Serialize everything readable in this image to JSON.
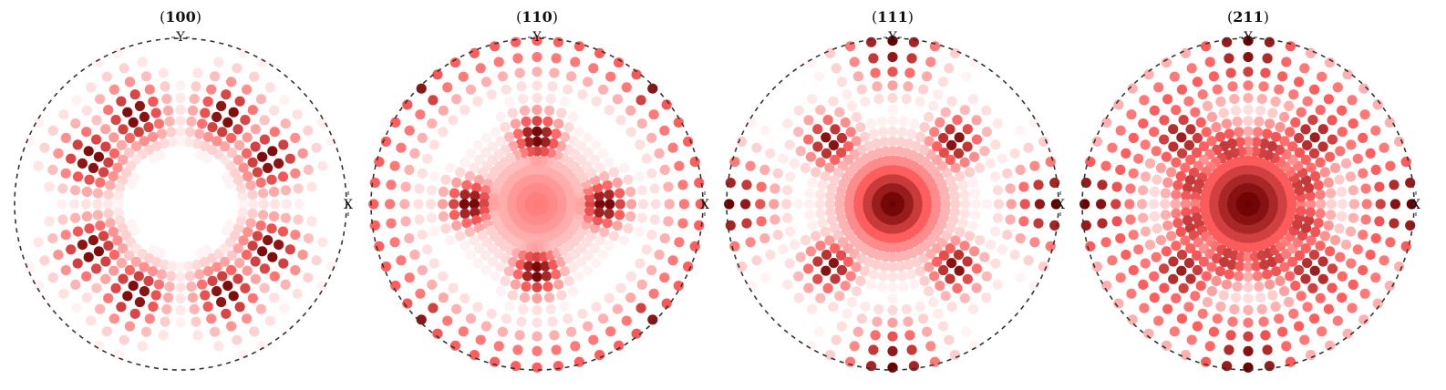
{
  "chart_data": [
    {
      "type": "scatter",
      "chart_kind": "pole-figure",
      "title_plane": "100",
      "x_label": "X",
      "y_label": "Y",
      "projection": "stereographic",
      "pole_model": {
        "base_angle_deg": 45,
        "symmetry": 4,
        "peaks": [
          {
            "polar_deg": 63,
            "azimuth_deg": 27,
            "spread_deg": 11,
            "weight": 1.0
          },
          {
            "polar_deg": 63,
            "azimuth_deg": 63,
            "spread_deg": 11,
            "weight": 1.0
          }
        ],
        "center_hole_deg": 38
      },
      "colors": {
        "low": "#ffffff",
        "mid": "#ff5e5e",
        "high": "#6b0000"
      }
    },
    {
      "type": "scatter",
      "chart_kind": "pole-figure",
      "title_plane": "110",
      "x_label": "X",
      "y_label": "Y",
      "projection": "stereographic",
      "pole_model": {
        "base_angle_deg": 0,
        "symmetry": 4,
        "peaks": [
          {
            "polar_deg": 45,
            "azimuth_deg": 0,
            "spread_deg": 10,
            "weight": 1.0
          },
          {
            "polar_deg": 90,
            "azimuth_deg": 45,
            "spread_deg": 8,
            "weight": 0.9
          },
          {
            "polar_deg": 0,
            "azimuth_deg": 0,
            "spread_deg": 25,
            "weight": 0.45
          }
        ],
        "ring_polar_deg": 90,
        "ring_weight": 0.55
      },
      "colors": {
        "low": "#ffffff",
        "mid": "#ff5e5e",
        "high": "#6b0000"
      }
    },
    {
      "type": "scatter",
      "chart_kind": "pole-figure",
      "title_plane": "111",
      "x_label": "X",
      "y_label": "Y",
      "projection": "stereographic",
      "pole_model": {
        "base_angle_deg": 0,
        "symmetry": 4,
        "peaks": [
          {
            "polar_deg": 0,
            "azimuth_deg": 0,
            "spread_deg": 22,
            "weight": 1.0
          },
          {
            "polar_deg": 57,
            "azimuth_deg": 45,
            "spread_deg": 10,
            "weight": 0.95
          },
          {
            "polar_deg": 90,
            "azimuth_deg": 0,
            "spread_deg": 12,
            "weight": 1.0
          }
        ]
      },
      "colors": {
        "low": "#ffffff",
        "mid": "#ff5e5e",
        "high": "#6b0000"
      }
    },
    {
      "type": "scatter",
      "chart_kind": "pole-figure",
      "title_plane": "211",
      "x_label": "X",
      "y_label": "Y",
      "projection": "stereographic",
      "pole_model": {
        "base_angle_deg": 0,
        "symmetry": 4,
        "peaks": [
          {
            "polar_deg": 0,
            "azimuth_deg": 0,
            "spread_deg": 28,
            "weight": 1.0
          },
          {
            "polar_deg": 90,
            "azimuth_deg": 0,
            "spread_deg": 14,
            "weight": 1.0
          },
          {
            "polar_deg": 60,
            "azimuth_deg": 45,
            "spread_deg": 14,
            "weight": 0.85
          },
          {
            "polar_deg": 40,
            "azimuth_deg": 20,
            "spread_deg": 12,
            "weight": 0.75
          },
          {
            "polar_deg": 40,
            "azimuth_deg": 70,
            "spread_deg": 12,
            "weight": 0.75
          }
        ],
        "ring_polar_deg": 78,
        "ring_weight": 0.55
      },
      "colors": {
        "low": "#ffffff",
        "mid": "#ff5e5e",
        "high": "#6b0000"
      }
    }
  ]
}
